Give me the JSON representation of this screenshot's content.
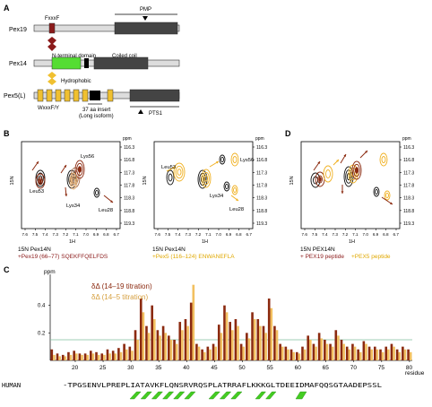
{
  "panelA": {
    "letter": "A",
    "pex19": {
      "name": "Pex19",
      "motif": "FxxxF",
      "domain": "PMP"
    },
    "pex14": {
      "name": "Pex14",
      "nterm": "N-terminal domain",
      "coil": "Coiled coil"
    },
    "hydrophobic": "Hydrophobic",
    "pex5": {
      "name": "Pex5(L)",
      "motif": "WxxxF/Y",
      "insert1": "37 aa insert",
      "insert2": "(Long isoform)",
      "pts1": "PTS1"
    },
    "colors": {
      "pex19_motif": "#8b1a1a",
      "pex14_nterm": "#55dd33",
      "pex5_motif": "#f0c030",
      "bar_dark": "#444444",
      "bar_light": "#dddddd"
    }
  },
  "panelB": {
    "letter": "B",
    "ppm": "ppm",
    "yaxis": "15N",
    "xaxis": "1H",
    "yticks": [
      "116.3",
      "116.8",
      "117.3",
      "117.8",
      "118.3",
      "118.8",
      "119.3"
    ],
    "xticks": [
      "7.6",
      "7.5",
      "7.4",
      "7.3",
      "7.2",
      "7.1",
      "7.0",
      "6.9",
      "6.8",
      "6.7"
    ],
    "left": {
      "labels": [
        "Lys56",
        "Leu53",
        "Lys34",
        "Leu28"
      ],
      "caption1": "15N Pex14N",
      "caption2": "+Pex19 (66–77) SQEKFFQELFDS"
    },
    "right": {
      "labels": [
        "Lys56",
        "Leu53",
        "Lys34",
        "Leu28"
      ],
      "caption1": "15N Pex14N",
      "caption2": "+Pex5 (116–124) ENWANEFLA"
    }
  },
  "panelD": {
    "letter": "D",
    "caption1": "15N PEX14N",
    "caption2a": "+ PEX19 peptide",
    "caption2b": "+PEX5 peptide"
  },
  "panelC": {
    "letter": "C",
    "legend1": "δΔ (14–19 titration)",
    "legend2": "δΔ (14–5 titration)",
    "residue_label": "residue",
    "sequence_label": "HUMAN",
    "sequence": "-TPGSENVLPREPLIATAVKFLQNSRVRQSPLATRRAFLKKKGLTDEEIDMAFQQSGTAADEPSSL",
    "colors": {
      "series1": "#8b2a10",
      "series2": "#f2c060",
      "helix": "#44cc22"
    }
  },
  "chart_data": {
    "type": "bar",
    "x": [
      16,
      17,
      18,
      19,
      20,
      21,
      22,
      23,
      24,
      25,
      26,
      27,
      28,
      29,
      30,
      31,
      32,
      33,
      34,
      35,
      36,
      37,
      38,
      39,
      40,
      41,
      42,
      43,
      44,
      45,
      46,
      47,
      48,
      49,
      50,
      51,
      52,
      53,
      54,
      55,
      56,
      57,
      58,
      59,
      60,
      61,
      62,
      63,
      64,
      65,
      66,
      67,
      68,
      69,
      70,
      71,
      72,
      73,
      74,
      75,
      76,
      77,
      78,
      79,
      80
    ],
    "series": [
      {
        "name": "δΔ (14–19 titration)",
        "values": [
          0.08,
          0.05,
          0.04,
          0.06,
          0.07,
          0.05,
          0.05,
          0.07,
          0.06,
          0.05,
          0.08,
          0.07,
          0.09,
          0.12,
          0.1,
          0.22,
          0.45,
          0.25,
          0.4,
          0.22,
          0.25,
          0.18,
          0.15,
          0.28,
          0.3,
          0.42,
          0.12,
          0.08,
          0.1,
          0.12,
          0.26,
          0.4,
          0.28,
          0.3,
          0.12,
          0.2,
          0.35,
          0.3,
          0.25,
          0.45,
          0.25,
          0.12,
          0.1,
          0.08,
          0.06,
          0.1,
          0.18,
          0.12,
          0.2,
          0.15,
          0.12,
          0.22,
          0.15,
          0.1,
          0.12,
          0.08,
          0.14,
          0.1,
          0.1,
          0.08,
          0.1,
          0.12,
          0.08,
          0.1,
          0.08
        ]
      },
      {
        "name": "δΔ (14–5 titration)",
        "values": [
          0.04,
          0.03,
          0.03,
          0.04,
          0.05,
          0.04,
          0.04,
          0.05,
          0.04,
          0.04,
          0.05,
          0.05,
          0.06,
          0.08,
          0.07,
          0.15,
          0.35,
          0.2,
          0.3,
          0.18,
          0.2,
          0.15,
          0.12,
          0.22,
          0.25,
          0.55,
          0.1,
          0.06,
          0.08,
          0.1,
          0.2,
          0.35,
          0.22,
          0.25,
          0.1,
          0.16,
          0.3,
          0.25,
          0.2,
          0.38,
          0.22,
          0.1,
          0.08,
          0.06,
          0.05,
          0.08,
          0.15,
          0.1,
          0.16,
          0.12,
          0.1,
          0.18,
          0.12,
          0.08,
          0.1,
          0.06,
          0.12,
          0.08,
          0.08,
          0.06,
          0.08,
          0.1,
          0.06,
          0.08,
          0.06
        ]
      }
    ],
    "ylabel": "ppm",
    "yticks": [
      "0.4",
      "0.2"
    ],
    "ylim": [
      0,
      0.6
    ],
    "xticks": [
      20,
      25,
      30,
      35,
      40,
      45,
      50,
      55,
      60,
      65,
      70,
      75,
      80
    ],
    "threshold": 0.15
  }
}
